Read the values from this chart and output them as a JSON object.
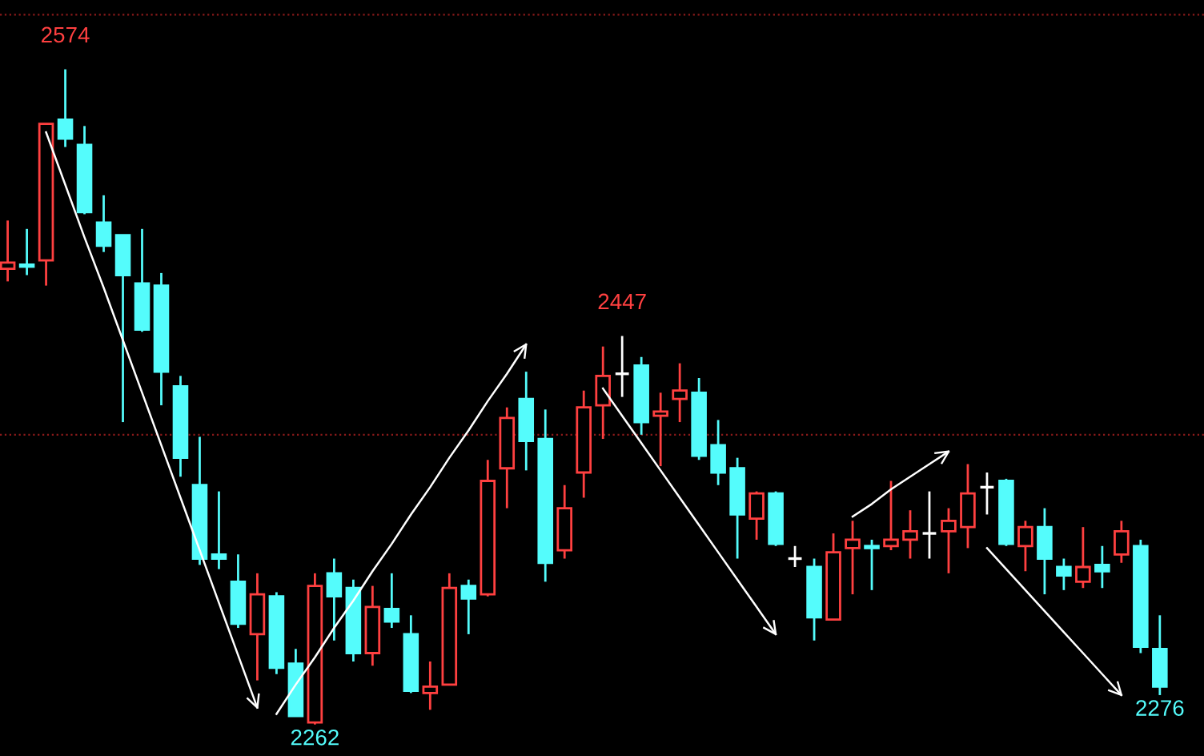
{
  "chart_data": {
    "type": "candlestick",
    "tick_labels": false,
    "relative": false,
    "categories": [
      null,
      null,
      null,
      null,
      null,
      null,
      null,
      null,
      null,
      null,
      null,
      null,
      null,
      null,
      null,
      null,
      null,
      null,
      null,
      null,
      null,
      null,
      null,
      null,
      null,
      null,
      null,
      null,
      null,
      null,
      null,
      null,
      null,
      null,
      null,
      null,
      null,
      null,
      null,
      null,
      null,
      null,
      null,
      null,
      null,
      null,
      null,
      null,
      null,
      null,
      null,
      null,
      null,
      null,
      null,
      null,
      null,
      null,
      null,
      null,
      null
    ],
    "ohlc": [
      [
        2479,
        2502,
        2473,
        2482
      ],
      [
        2481,
        2498,
        2476,
        2480
      ],
      [
        2483,
        2548,
        2471,
        2548
      ],
      [
        2550,
        2574,
        2537,
        2541
      ],
      [
        2538,
        2547,
        2505,
        2506
      ],
      [
        2501,
        2514,
        2487,
        2490
      ],
      [
        2495,
        2495,
        2406,
        2476
      ],
      [
        2472,
        2498,
        2449,
        2450
      ],
      [
        2471,
        2477,
        2414,
        2430
      ],
      [
        2423,
        2428,
        2380,
        2389
      ],
      [
        2376,
        2399,
        2338,
        2341
      ],
      [
        2343,
        2373,
        2336,
        2341
      ],
      [
        2330,
        2343,
        2308,
        2310
      ],
      [
        2305,
        2334,
        2283,
        2324
      ],
      [
        2323,
        2325,
        2286,
        2289
      ],
      [
        2291,
        2298,
        2266,
        2266
      ],
      [
        2263,
        2334,
        2262,
        2328
      ],
      [
        2334,
        2341,
        2302,
        2323
      ],
      [
        2327,
        2331,
        2292,
        2296
      ],
      [
        2296,
        2328,
        2290,
        2318
      ],
      [
        2317,
        2334,
        2308,
        2311
      ],
      [
        2305,
        2314,
        2277,
        2278
      ],
      [
        2277,
        2292,
        2269,
        2280
      ],
      [
        2281,
        2334,
        2281,
        2327
      ],
      [
        2328,
        2331,
        2305,
        2322
      ],
      [
        2324,
        2388,
        2323,
        2378
      ],
      [
        2384,
        2413,
        2365,
        2408
      ],
      [
        2417,
        2430,
        2383,
        2397
      ],
      [
        2398,
        2412,
        2330,
        2339
      ],
      [
        2345,
        2376,
        2341,
        2365
      ],
      [
        2382,
        2421,
        2370,
        2413
      ],
      [
        2414,
        2442,
        2398,
        2428
      ],
      [
        2429,
        2447,
        2418,
        2429
      ],
      [
        2433,
        2437,
        2400,
        2406
      ],
      [
        2409,
        2420,
        2385,
        2411
      ],
      [
        2417,
        2434,
        2406,
        2421
      ],
      [
        2420,
        2427,
        2388,
        2390
      ],
      [
        2395,
        2407,
        2376,
        2382
      ],
      [
        2384,
        2389,
        2341,
        2362
      ],
      [
        2360,
        2373,
        2350,
        2372
      ],
      [
        2372,
        2373,
        2347,
        2348
      ],
      [
        2341,
        2347,
        2337,
        2341
      ],
      [
        2337,
        2341,
        2302,
        2313
      ],
      [
        2312,
        2353,
        2312,
        2344
      ],
      [
        2346,
        2359,
        2324,
        2350
      ],
      [
        2347,
        2350,
        2326,
        2346
      ],
      [
        2347,
        2378,
        2345,
        2350
      ],
      [
        2350,
        2364,
        2341,
        2354
      ],
      [
        2353,
        2373,
        2341,
        2353
      ],
      [
        2354,
        2365,
        2334,
        2359
      ],
      [
        2356,
        2386,
        2346,
        2372
      ],
      [
        2375,
        2382,
        2362,
        2375
      ],
      [
        2378,
        2379,
        2347,
        2348
      ],
      [
        2347,
        2359,
        2335,
        2356
      ],
      [
        2356,
        2365,
        2324,
        2341
      ],
      [
        2337,
        2341,
        2326,
        2333
      ],
      [
        2330,
        2356,
        2327,
        2337
      ],
      [
        2338,
        2347,
        2327,
        2335
      ],
      [
        2343,
        2359,
        2339,
        2354
      ],
      [
        2347,
        2350,
        2296,
        2299
      ],
      [
        2298,
        2314,
        2276,
        2280
      ]
    ],
    "colors": [
      "#ff4040",
      "#54fcfc",
      "#ff4040",
      "#54fcfc",
      "#54fcfc",
      "#54fcfc",
      "#54fcfc",
      "#54fcfc",
      "#54fcfc",
      "#54fcfc",
      "#54fcfc",
      "#54fcfc",
      "#54fcfc",
      "#ff4040",
      "#54fcfc",
      "#54fcfc",
      "#ff4040",
      "#54fcfc",
      "#54fcfc",
      "#ff4040",
      "#54fcfc",
      "#54fcfc",
      "#ff4040",
      "#ff4040",
      "#54fcfc",
      "#ff4040",
      "#ff4040",
      "#54fcfc",
      "#54fcfc",
      "#ff4040",
      "#ff4040",
      "#ff4040",
      "#ffffff",
      "#54fcfc",
      "#ff4040",
      "#ff4040",
      "#54fcfc",
      "#54fcfc",
      "#54fcfc",
      "#ff4040",
      "#54fcfc",
      "#ffffff",
      "#54fcfc",
      "#ff4040",
      "#ff4040",
      "#54fcfc",
      "#ff4040",
      "#ff4040",
      "#ffffff",
      "#ff4040",
      "#ff4040",
      "#ffffff",
      "#54fcfc",
      "#ff4040",
      "#54fcfc",
      "#54fcfc",
      "#ff4040",
      "#54fcfc",
      "#ff4040",
      "#54fcfc",
      "#54fcfc"
    ],
    "ylim": [
      2247,
      2607
    ],
    "ref_lines": [
      {
        "axis": "y",
        "value": 2600,
        "color": "#8b1a1a",
        "line_style": "dotted"
      },
      {
        "axis": "y",
        "value": 2400,
        "color": "#8b1a1a",
        "line_style": "dotted"
      }
    ],
    "annotations": [
      {
        "text": "2574",
        "y": 2574
      },
      {
        "text": "2262",
        "y": 2262
      },
      {
        "text": "2447",
        "y": 2447
      },
      {
        "text": "2276",
        "y": 2276
      }
    ],
    "series": [
      {
        "type": "line",
        "color": "#ffffff",
        "values": [
          null,
          null,
          2544,
          2519,
          2494,
          2470,
          2445,
          2420,
          2395,
          2370,
          2345,
          2320,
          2295,
          2270,
          null,
          null,
          null,
          null,
          null,
          null,
          null,
          null,
          null,
          null,
          null,
          null,
          null,
          null,
          null,
          null,
          null,
          null,
          null,
          null,
          null,
          null,
          null,
          null,
          null,
          null,
          null,
          null,
          null,
          null,
          null,
          null,
          null,
          null,
          null,
          null,
          null,
          null,
          null,
          null,
          null,
          null,
          null,
          null,
          null,
          null,
          null
        ]
      },
      {
        "type": "line",
        "color": "#ffffff",
        "values": [
          null,
          null,
          null,
          null,
          null,
          null,
          null,
          null,
          null,
          null,
          null,
          null,
          null,
          null,
          2267,
          2281,
          2294,
          2308,
          2321,
          2335,
          2348,
          2362,
          2375,
          2389,
          2402,
          2416,
          2429,
          2443,
          null,
          null,
          null,
          null,
          null,
          null,
          null,
          null,
          null,
          null,
          null,
          null,
          null,
          null,
          null,
          null,
          null,
          null,
          null,
          null,
          null,
          null,
          null,
          null,
          null,
          null,
          null,
          null,
          null,
          null,
          null,
          null,
          null
        ]
      },
      {
        "type": "line",
        "color": "#ffffff",
        "values": [
          null,
          null,
          null,
          null,
          null,
          null,
          null,
          null,
          null,
          null,
          null,
          null,
          null,
          null,
          null,
          null,
          null,
          null,
          null,
          null,
          null,
          null,
          null,
          null,
          null,
          null,
          null,
          null,
          null,
          null,
          null,
          2422,
          2409,
          2396,
          2383,
          2370,
          2357,
          2344,
          2331,
          2318,
          2305,
          null,
          null,
          null,
          null,
          null,
          null,
          null,
          null,
          null,
          null,
          null,
          null,
          null,
          null,
          null,
          null,
          null,
          null,
          null,
          null
        ]
      },
      {
        "type": "line",
        "color": "#ffffff",
        "values": [
          null,
          null,
          null,
          null,
          null,
          null,
          null,
          null,
          null,
          null,
          null,
          null,
          null,
          null,
          null,
          null,
          null,
          null,
          null,
          null,
          null,
          null,
          null,
          null,
          null,
          null,
          null,
          null,
          null,
          null,
          null,
          null,
          null,
          null,
          null,
          null,
          null,
          null,
          null,
          null,
          null,
          null,
          null,
          null,
          2361,
          2367,
          2374,
          2380,
          2386,
          2392,
          null,
          null,
          null,
          null,
          null,
          null,
          null,
          null,
          null,
          null,
          null
        ]
      },
      {
        "type": "line",
        "color": "#ffffff",
        "values": [
          null,
          null,
          null,
          null,
          null,
          null,
          null,
          null,
          null,
          null,
          null,
          null,
          null,
          null,
          null,
          null,
          null,
          null,
          null,
          null,
          null,
          null,
          null,
          null,
          null,
          null,
          null,
          null,
          null,
          null,
          null,
          null,
          null,
          null,
          null,
          null,
          null,
          null,
          null,
          null,
          null,
          null,
          null,
          null,
          null,
          null,
          null,
          null,
          null,
          null,
          null,
          2346,
          2336,
          2326,
          2316,
          2306,
          2296,
          2286,
          2276,
          null,
          null
        ]
      }
    ],
    "legend": false
  }
}
